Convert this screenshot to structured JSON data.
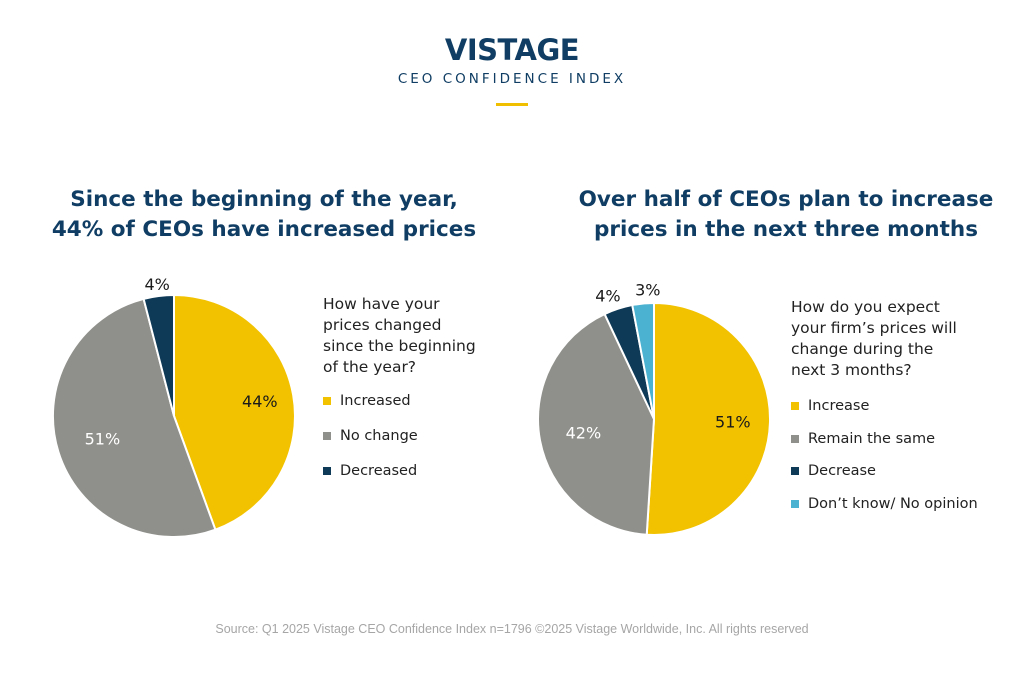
{
  "brand": {
    "name": "VISTAGE",
    "subtitle": "CEO CONFIDENCE INDEX",
    "accent": "#f0c000",
    "navy": "#0f3d63"
  },
  "chart_data": [
    {
      "type": "pie",
      "title_lines": [
        "Since the beginning of the year,",
        "44% of CEOs have increased prices"
      ],
      "question_lines": [
        "How have your",
        "prices changed",
        "since the beginning",
        "of the year?"
      ],
      "start_angle_deg": 0,
      "direction": "clockwise",
      "slices": [
        {
          "label": "Increased",
          "value": 44,
          "display": "44%",
          "color": "#f2c200"
        },
        {
          "label": "No change",
          "value": 51,
          "display": "51%",
          "color": "#8f8f8b"
        },
        {
          "label": "Decreased",
          "value": 4,
          "display": "4%",
          "color": "#0e3a57"
        }
      ]
    },
    {
      "type": "pie",
      "title_lines": [
        "Over half of CEOs plan to increase",
        "prices in the next three months"
      ],
      "question_lines": [
        "How do you expect",
        "your firm’s prices will",
        "change during the",
        "next 3 months?"
      ],
      "start_angle_deg": 0,
      "direction": "clockwise",
      "slices": [
        {
          "label": "Increase",
          "value": 51,
          "display": "51%",
          "color": "#f2c200"
        },
        {
          "label": "Remain the same",
          "value": 42,
          "display": "42%",
          "color": "#8f8f8b"
        },
        {
          "label": "Decrease",
          "value": 4,
          "display": "4%",
          "color": "#0e3a57"
        },
        {
          "label": "Don’t know/ No opinion",
          "value": 3,
          "display": "3%",
          "color": "#4bb2d1"
        }
      ]
    }
  ],
  "source": "Source: Q1 2025 Vistage CEO Confidence Index n=1796 ©2025 Vistage Worldwide, Inc. All rights reserved"
}
